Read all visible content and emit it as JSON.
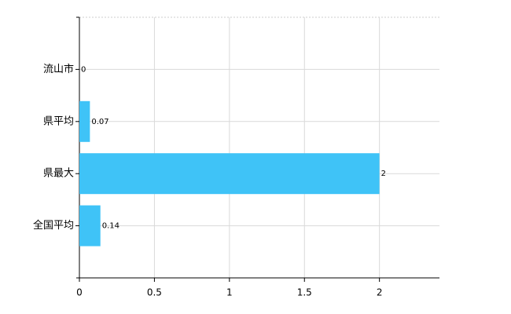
{
  "chart_data": {
    "type": "hbar",
    "categories": [
      "流山市",
      "県平均",
      "県最大",
      "全国平均"
    ],
    "values": [
      0,
      0.07,
      2,
      0.14
    ],
    "color": "#3fc3f7",
    "xlim": [
      0,
      2.4
    ],
    "xticks": [
      0,
      0.5,
      1,
      1.5,
      2
    ],
    "grid": true
  }
}
